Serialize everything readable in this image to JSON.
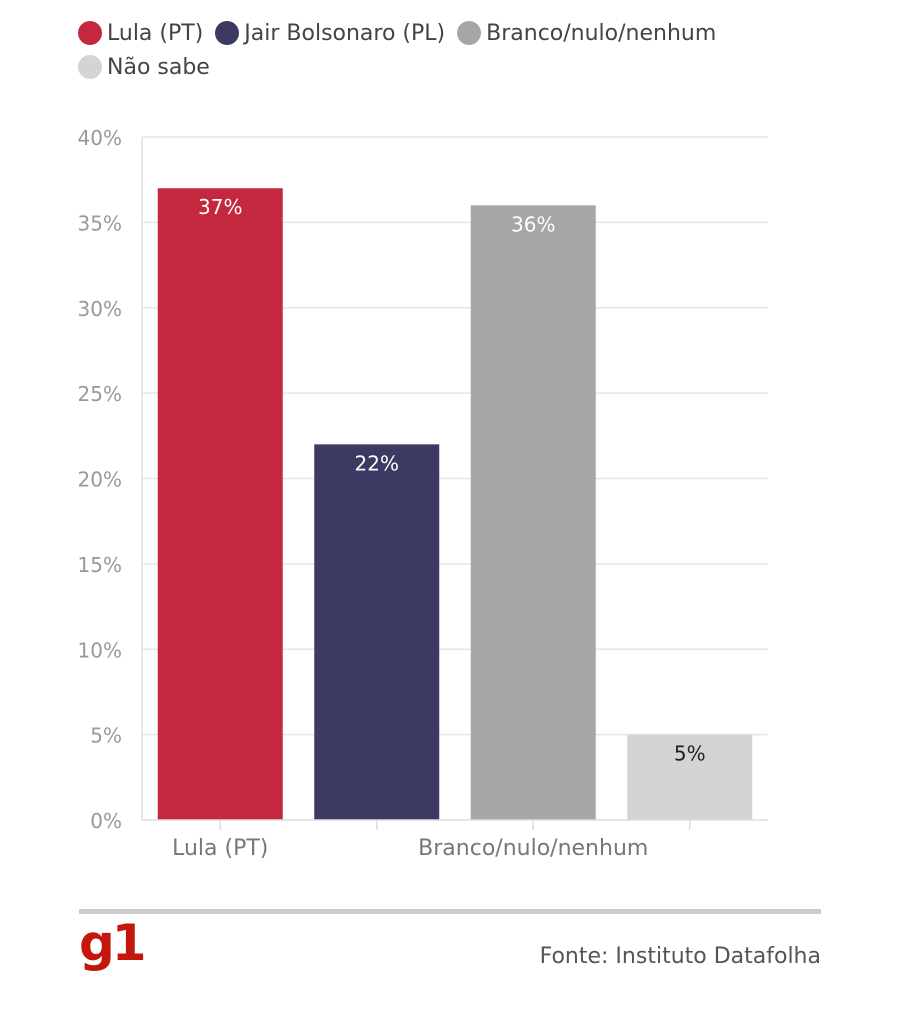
{
  "legend": [
    {
      "label": "Lula (PT)",
      "color": "#c4283f"
    },
    {
      "label": "Jair Bolsonaro (PL)",
      "color": "#3c3a62"
    },
    {
      "label": "Branco/nulo/nenhum",
      "color": "#a6a6a6"
    },
    {
      "label": "Não sabe",
      "color": "#d4d4d4"
    }
  ],
  "chart_data": {
    "type": "bar",
    "categories": [
      "Lula (PT)",
      "Jair Bolsonaro (PL)",
      "Branco/nulo/nenhum",
      "Não sabe"
    ],
    "values": [
      37,
      22,
      36,
      5
    ],
    "data_labels": [
      "37%",
      "22%",
      "36%",
      "5%"
    ],
    "colors": [
      "#c4283f",
      "#3c3a62",
      "#a6a6a6",
      "#d4d4d4"
    ],
    "label_colors": [
      "#ffffff",
      "#ffffff",
      "#ffffff",
      "#222222"
    ],
    "x_tick_labels": [
      "Lula (PT)",
      "",
      "Branco/nulo/nenhum",
      ""
    ],
    "y_ticks": [
      0,
      5,
      10,
      15,
      20,
      25,
      30,
      35,
      40
    ],
    "y_tick_labels": [
      "0%",
      "5%",
      "10%",
      "15%",
      "20%",
      "25%",
      "30%",
      "35%",
      "40%"
    ],
    "ylim": [
      0,
      40
    ],
    "grid": true,
    "legend_position": "top-left",
    "title": "",
    "xlabel": "",
    "ylabel": ""
  },
  "footer": {
    "logo": "g1",
    "source": "Fonte: Instituto Datafolha"
  }
}
